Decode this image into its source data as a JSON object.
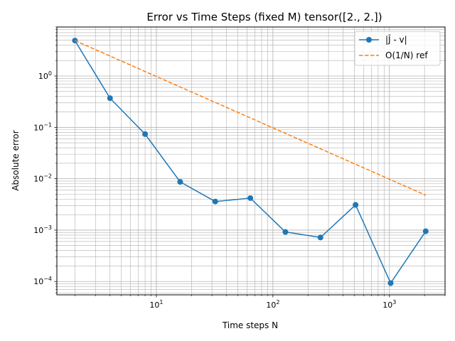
{
  "chart_data": {
    "type": "line",
    "title": "Error vs Time Steps (fixed M) tensor([2., 2.])",
    "xlabel": "Time steps N",
    "ylabel": "Absolute error",
    "xscale": "log",
    "yscale": "log",
    "xlim": [
      1.4,
      3000
    ],
    "ylim": [
      5.5e-05,
      9
    ],
    "grid": true,
    "legend_position": "top-right",
    "x_ticks": [
      {
        "value": 10,
        "base": "10",
        "exp": "1"
      },
      {
        "value": 100,
        "base": "10",
        "exp": "2"
      },
      {
        "value": 1000,
        "base": "10",
        "exp": "3"
      }
    ],
    "y_ticks": [
      {
        "value": 0.0001,
        "base": "10",
        "exp": "−4"
      },
      {
        "value": 0.001,
        "base": "10",
        "exp": "−3"
      },
      {
        "value": 0.01,
        "base": "10",
        "exp": "−2"
      },
      {
        "value": 0.1,
        "base": "10",
        "exp": "−1"
      },
      {
        "value": 1,
        "base": "10",
        "exp": "0"
      }
    ],
    "series": [
      {
        "name": "|Ĵ - v|",
        "style": "solid-marker",
        "color": "#1f77b4",
        "x": [
          2,
          4,
          8,
          16,
          32,
          64,
          128,
          256,
          512,
          1024,
          2048
        ],
        "y": [
          4.9,
          0.37,
          0.074,
          0.0087,
          0.0036,
          0.0042,
          0.00092,
          0.00072,
          0.0031,
          9.3e-05,
          0.00095
        ]
      },
      {
        "name": "O(1/N) ref",
        "style": "dashed",
        "color": "#ff7f0e",
        "x": [
          2,
          4,
          8,
          16,
          32,
          64,
          128,
          256,
          512,
          1024,
          2048
        ],
        "y": [
          4.9,
          2.45,
          1.225,
          0.6125,
          0.30625,
          0.153125,
          0.0765625,
          0.03828125,
          0.019140625,
          0.0095703125,
          0.00478515625
        ]
      }
    ]
  }
}
